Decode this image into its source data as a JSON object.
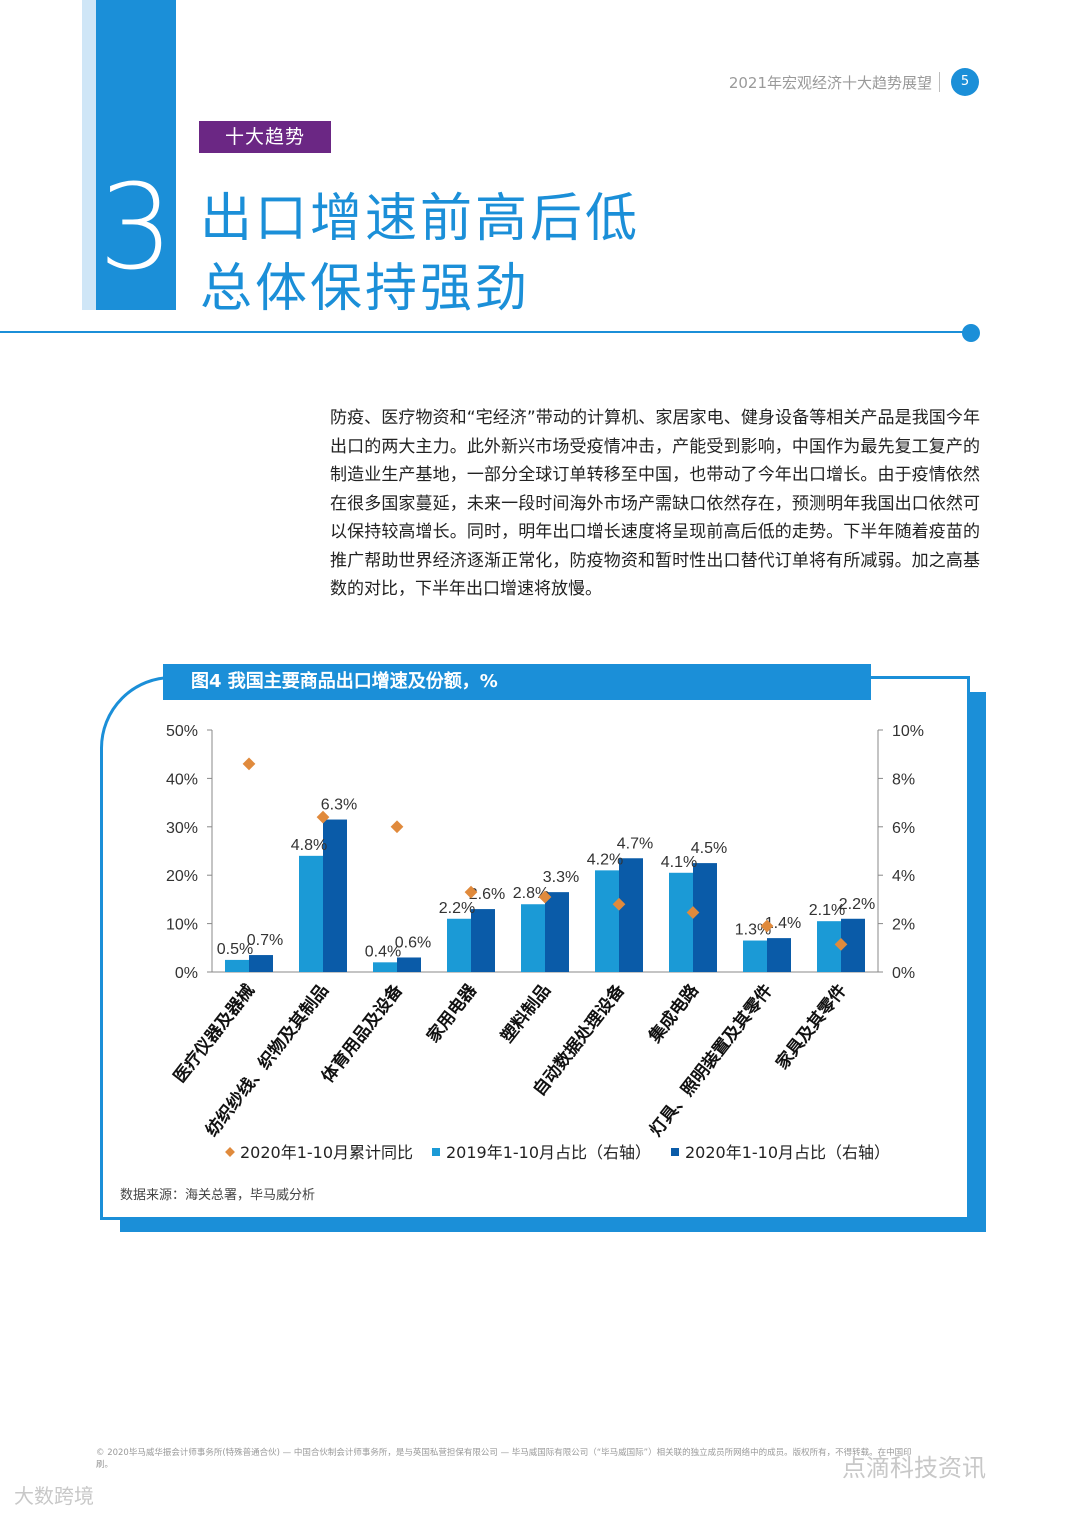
{
  "header": {
    "report_title": "2021年宏观经济十大趋势展望",
    "page_number": "5"
  },
  "section": {
    "tag": "十大趋势",
    "number": "3",
    "title_line1": "出口增速前高后低",
    "title_line2": "总体保持强劲"
  },
  "body": {
    "paragraph": "防疫、医疗物资和“宅经济”带动的计算机、家居家电、健身设备等相关产品是我国今年出口的两大主力。此外新兴市场受疫情冲击，产能受到影响，中国作为最先复工复产的制造业生产基地，一部分全球订单转移至中国，也带动了今年出口增长。由于疫情依然在很多国家蔓延，未来一段时间海外市场产需缺口依然存在，预测明年我国出口依然可以保持较高增长。同时，明年出口增长速度将呈现前高后低的走势。下半年随着疫苗的推广帮助世界经济逐渐正常化，防疫物资和暂时性出口替代订单将有所减弱。加之高基数的对比，下半年出口增速将放慢。"
  },
  "chart": {
    "header": "图4 我国主要商品出口增速及份额，%",
    "source": "数据来源：海关总署，毕马威分析"
  },
  "chart_data": {
    "type": "bar",
    "title": "图4 我国主要商品出口增速及份额，%",
    "categories": [
      "医疗仪器及器械",
      "纺织纱线、织物及其制品",
      "体育用品及设备",
      "家用电器",
      "塑料制品",
      "自动数据处理设备",
      "集成电路",
      "灯具、照明装置及其零件",
      "家具及其零件"
    ],
    "series": [
      {
        "name": "2020年1-10月累计同比",
        "kind": "scatter",
        "axis": "left",
        "color": "#e08a3c",
        "values": [
          43,
          32,
          30,
          16.5,
          15.5,
          14,
          12.3,
          9.5,
          5.7
        ]
      },
      {
        "name": "2019年1-10月占比（右轴）",
        "kind": "bar",
        "axis": "right",
        "color": "#1b9ad6",
        "values": [
          0.5,
          4.8,
          0.4,
          2.2,
          2.8,
          4.2,
          4.1,
          1.3,
          2.1
        ],
        "labels": [
          "0.5%",
          "4.8%",
          "0.4%",
          "2.2%",
          "2.8%",
          "4.2%",
          "4.1%",
          "1.3%",
          "2.1%"
        ]
      },
      {
        "name": "2020年1-10月占比（右轴）",
        "kind": "bar",
        "axis": "right",
        "color": "#0a5ba8",
        "values": [
          0.7,
          6.3,
          0.6,
          2.6,
          3.3,
          4.7,
          4.5,
          1.4,
          2.2
        ],
        "labels": [
          "0.7%",
          "6.3%",
          "0.6%",
          "2.6%",
          "3.3%",
          "4.7%",
          "4.5%",
          "1.4%",
          "2.2%"
        ]
      }
    ],
    "left_axis": {
      "ylim": [
        0,
        50
      ],
      "ticks": [
        "0%",
        "10%",
        "20%",
        "30%",
        "40%",
        "50%"
      ]
    },
    "right_axis": {
      "ylim": [
        0,
        10
      ],
      "ticks": [
        "0%",
        "2%",
        "4%",
        "6%",
        "8%",
        "10%"
      ]
    },
    "legend_position": "bottom"
  },
  "footer": {
    "copyright": "© 2020毕马威华振会计师事务所(特殊普通合伙) — 中国合伙制会计师事务所，是与英国私营担保有限公司 — 毕马威国际有限公司（“毕马威国际”）相关联的独立成员所网络中的成员。版权所有，不得转载。在中国印刷。"
  },
  "watermarks": {
    "left": "大数跨境",
    "right": "点滴科技资讯"
  },
  "colors": {
    "accent_blue": "#1b8fd8",
    "tag_purple": "#6b2784",
    "marker_orange": "#e08a3c",
    "bar_2019": "#1b9ad6",
    "bar_2020": "#0a5ba8"
  }
}
